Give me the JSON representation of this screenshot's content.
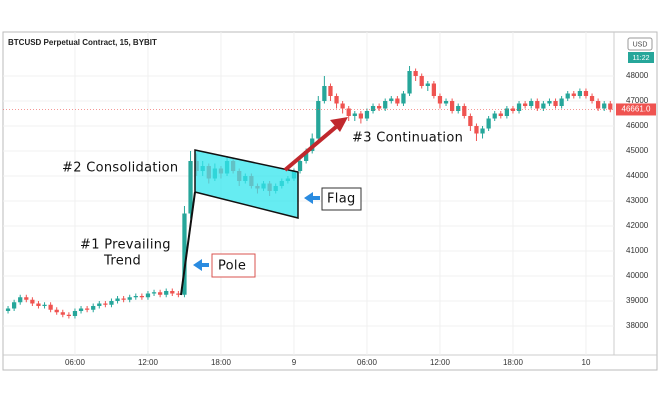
{
  "chart_data": {
    "type": "candlestick",
    "title": "BTCUSD Perpetual Contract, 15, BYBIT",
    "currency": "USD",
    "countdown": "11:22",
    "up_color": "#26a69a",
    "down_color": "#ef5350",
    "grid": true,
    "ylim": [
      36800,
      49000
    ],
    "yticks": [
      38000,
      39000,
      40000,
      41000,
      42000,
      43000,
      44000,
      45000,
      46000,
      47000,
      48000
    ],
    "xticks": [
      {
        "value": 11,
        "label": "06:00"
      },
      {
        "value": 23,
        "label": "12:00"
      },
      {
        "value": 35,
        "label": "18:00"
      },
      {
        "value": 47,
        "label": "9"
      },
      {
        "value": 59,
        "label": "06:00"
      },
      {
        "value": 71,
        "label": "12:00"
      },
      {
        "value": 83,
        "label": "18:00"
      },
      {
        "value": 95,
        "label": "10"
      }
    ],
    "last_price": {
      "value": 46661,
      "label": "46661.0"
    },
    "open": [
      38600,
      38700,
      38950,
      39150,
      39050,
      38900,
      38800,
      38850,
      38650,
      38550,
      38450,
      38400,
      38600,
      38700,
      38650,
      38800,
      38900,
      38850,
      39000,
      39100,
      39050,
      39150,
      39200,
      39150,
      39300,
      39350,
      39250,
      39400,
      39300,
      39250,
      42500,
      44600,
      44200,
      44400,
      43900,
      44300,
      44100,
      44600,
      44200,
      43800,
      44000,
      43600,
      43500,
      43700,
      43400,
      43600,
      43800,
      43900,
      44200,
      44600,
      45000,
      45500,
      47000,
      47600,
      47200,
      46900,
      46700,
      46400,
      46500,
      46300,
      46600,
      46800,
      46700,
      47000,
      47100,
      46900,
      47300,
      48200,
      48000,
      47600,
      47700,
      47200,
      46900,
      47000,
      46600,
      46800,
      46400,
      46000,
      45700,
      45900,
      46300,
      46500,
      46400,
      46700,
      46600,
      46900,
      46800,
      47000,
      46700,
      46900,
      47000,
      46800,
      47100,
      47300,
      47200,
      47400,
      47200,
      47000,
      46700,
      46900
    ],
    "high": [
      38800,
      39050,
      39250,
      39250,
      39150,
      39000,
      38950,
      38950,
      38750,
      38650,
      38550,
      38700,
      38800,
      38800,
      38900,
      39000,
      39000,
      39100,
      39200,
      39200,
      39250,
      39300,
      39300,
      39400,
      39450,
      39450,
      39500,
      39500,
      39400,
      42800,
      45000,
      44900,
      44600,
      44500,
      44500,
      44400,
      44800,
      44700,
      44300,
      44100,
      44100,
      43700,
      43800,
      43800,
      43700,
      43900,
      44000,
      44300,
      44700,
      45100,
      45700,
      47200,
      48000,
      47700,
      47300,
      47000,
      46800,
      46600,
      46600,
      46700,
      46900,
      46900,
      47100,
      47200,
      47200,
      47400,
      48400,
      48300,
      48100,
      47800,
      47800,
      47300,
      47100,
      47100,
      46900,
      46900,
      46500,
      46100,
      46000,
      46400,
      46600,
      46600,
      46800,
      46800,
      47000,
      47000,
      47100,
      47100,
      47000,
      47100,
      47100,
      47200,
      47400,
      47400,
      47500,
      47500,
      47300,
      47100,
      47000,
      47000
    ],
    "low": [
      38500,
      38600,
      38850,
      38950,
      38800,
      38700,
      38700,
      38550,
      38450,
      38350,
      38300,
      38300,
      38500,
      38550,
      38550,
      38700,
      38750,
      38750,
      38900,
      38950,
      38950,
      39050,
      39050,
      39050,
      39200,
      39150,
      39150,
      39200,
      39150,
      39150,
      42300,
      44000,
      44000,
      43700,
      43800,
      43900,
      44000,
      44100,
      43600,
      43700,
      43500,
      43300,
      43400,
      43200,
      43300,
      43500,
      43700,
      43800,
      44100,
      44500,
      44900,
      45400,
      46900,
      47000,
      46700,
      46500,
      46200,
      46200,
      46100,
      46200,
      46500,
      46600,
      46600,
      46900,
      46800,
      46800,
      47200,
      47800,
      47500,
      47400,
      47100,
      46700,
      46800,
      46500,
      46500,
      46300,
      45800,
      45400,
      45500,
      45800,
      46200,
      46300,
      46300,
      46500,
      46500,
      46700,
      46700,
      46600,
      46600,
      46800,
      46700,
      46700,
      47000,
      47100,
      47100,
      47100,
      46900,
      46600,
      46600,
      46550
    ],
    "close": [
      38700,
      38950,
      39150,
      39050,
      38900,
      38800,
      38850,
      38650,
      38550,
      38450,
      38400,
      38600,
      38700,
      38650,
      38800,
      38900,
      38850,
      39000,
      39100,
      39050,
      39150,
      39200,
      39150,
      39300,
      39350,
      39250,
      39400,
      39300,
      39250,
      42500,
      44600,
      44200,
      44400,
      43900,
      44300,
      44100,
      44600,
      44200,
      43800,
      44000,
      43600,
      43500,
      43700,
      43400,
      43600,
      43800,
      43900,
      44200,
      44600,
      45000,
      45500,
      47000,
      47600,
      47200,
      46900,
      46700,
      46400,
      46500,
      46300,
      46600,
      46800,
      46700,
      47000,
      47100,
      46900,
      47300,
      48200,
      48000,
      47600,
      47700,
      47200,
      46900,
      47000,
      46600,
      46800,
      46400,
      46000,
      45700,
      45900,
      46300,
      46500,
      46400,
      46700,
      46600,
      46900,
      46800,
      47000,
      46700,
      46900,
      47000,
      46800,
      47100,
      47300,
      47200,
      47400,
      47200,
      47000,
      46700,
      46900,
      46661
    ],
    "annotations": {
      "consolidation": "#2 Consolidation",
      "prevailing": [
        "#1 Prevailing",
        "Trend"
      ],
      "pole": "Pole",
      "flag": "Flag",
      "continuation": "#3 Continuation"
    }
  }
}
